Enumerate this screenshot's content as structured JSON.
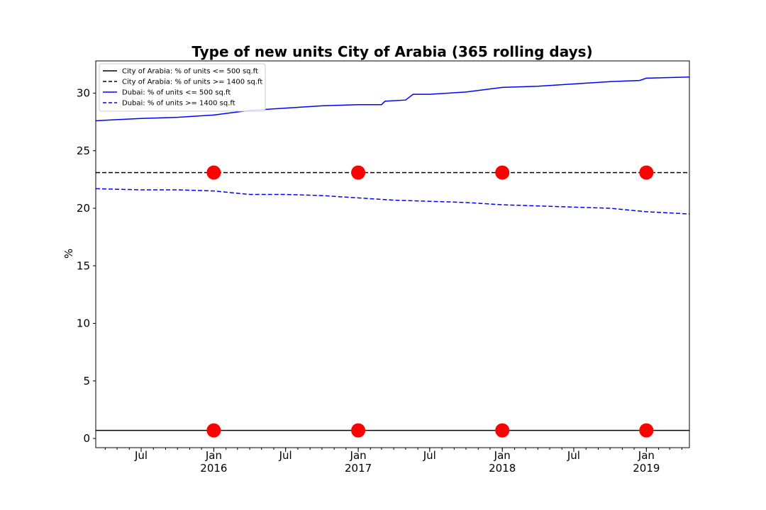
{
  "chart_data": {
    "type": "line",
    "title": "Type of new units City of Arabia (365 rolling days)",
    "xlabel": "",
    "ylabel": "%",
    "xlim": [
      "2015-03-08",
      "2019-04-20"
    ],
    "ylim": [
      -0.8,
      32.8
    ],
    "yticks": [
      0,
      5,
      10,
      15,
      20,
      25,
      30
    ],
    "xticks_major": [
      {
        "date": "2015-07-01",
        "label": "Jul",
        "year": ""
      },
      {
        "date": "2016-01-01",
        "label": "Jan",
        "year": "2016"
      },
      {
        "date": "2016-07-01",
        "label": "Jul",
        "year": ""
      },
      {
        "date": "2017-01-01",
        "label": "Jan",
        "year": "2017"
      },
      {
        "date": "2017-07-01",
        "label": "Jul",
        "year": ""
      },
      {
        "date": "2018-01-01",
        "label": "Jan",
        "year": "2018"
      },
      {
        "date": "2018-07-01",
        "label": "Jul",
        "year": ""
      },
      {
        "date": "2019-01-01",
        "label": "Jan",
        "year": "2019"
      }
    ],
    "grid": false,
    "legend_position": "top-left",
    "series": [
      {
        "name": "City of Arabia: % of units <= 500 sq.ft",
        "color": "#000000",
        "style": "solid",
        "points": [
          [
            "2015-03-08",
            0.7
          ],
          [
            "2019-04-20",
            0.7
          ]
        ]
      },
      {
        "name": "City of Arabia: % of units >= 1400 sq.ft",
        "color": "#000000",
        "style": "dashed",
        "points": [
          [
            "2015-03-08",
            23.1
          ],
          [
            "2019-04-20",
            23.1
          ]
        ]
      },
      {
        "name": "Dubai: % of units <= 500 sq.ft",
        "color": "#0000ff",
        "style": "solid",
        "points": [
          [
            "2015-03-08",
            27.6
          ],
          [
            "2015-05-01",
            27.7
          ],
          [
            "2015-07-01",
            27.8
          ],
          [
            "2015-10-01",
            27.9
          ],
          [
            "2016-01-01",
            28.1
          ],
          [
            "2016-04-01",
            28.5
          ],
          [
            "2016-07-01",
            28.7
          ],
          [
            "2016-10-01",
            28.9
          ],
          [
            "2017-01-01",
            29.0
          ],
          [
            "2017-03-01",
            29.0
          ],
          [
            "2017-03-10",
            29.3
          ],
          [
            "2017-05-01",
            29.4
          ],
          [
            "2017-05-20",
            29.9
          ],
          [
            "2017-07-01",
            29.9
          ],
          [
            "2017-10-01",
            30.1
          ],
          [
            "2018-01-01",
            30.5
          ],
          [
            "2018-04-01",
            30.6
          ],
          [
            "2018-07-01",
            30.8
          ],
          [
            "2018-10-01",
            31.0
          ],
          [
            "2018-12-15",
            31.1
          ],
          [
            "2019-01-01",
            31.3
          ],
          [
            "2019-04-20",
            31.4
          ]
        ]
      },
      {
        "name": "Dubai: % of units >= 1400 sq.ft",
        "color": "#0000ff",
        "style": "dashed",
        "points": [
          [
            "2015-03-08",
            21.7
          ],
          [
            "2015-07-01",
            21.6
          ],
          [
            "2015-10-01",
            21.6
          ],
          [
            "2016-01-01",
            21.5
          ],
          [
            "2016-04-01",
            21.2
          ],
          [
            "2016-07-01",
            21.2
          ],
          [
            "2016-10-01",
            21.1
          ],
          [
            "2017-01-01",
            20.9
          ],
          [
            "2017-04-01",
            20.7
          ],
          [
            "2017-07-01",
            20.6
          ],
          [
            "2017-10-01",
            20.5
          ],
          [
            "2018-01-01",
            20.3
          ],
          [
            "2018-04-01",
            20.2
          ],
          [
            "2018-07-01",
            20.1
          ],
          [
            "2018-10-01",
            20.0
          ],
          [
            "2019-01-01",
            19.7
          ],
          [
            "2019-04-20",
            19.5
          ]
        ]
      }
    ],
    "markers": {
      "color": "#ff0000",
      "shape": "circle",
      "points": [
        [
          "2016-01-01",
          0.7
        ],
        [
          "2017-01-01",
          0.7
        ],
        [
          "2018-01-01",
          0.7
        ],
        [
          "2019-01-01",
          0.7
        ],
        [
          "2016-01-01",
          23.1
        ],
        [
          "2017-01-01",
          23.1
        ],
        [
          "2018-01-01",
          23.1
        ],
        [
          "2019-01-01",
          23.1
        ]
      ]
    }
  }
}
